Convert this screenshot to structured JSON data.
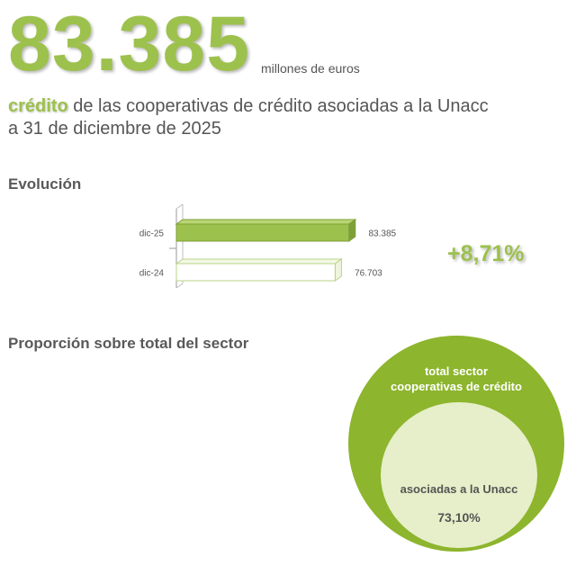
{
  "headline": {
    "big_number": "83.385",
    "unit": "millones de euros",
    "highlight": "crédito",
    "rest_line1": " de las cooperativas de crédito asociadas a la Unacc",
    "line2": "a 31 de diciembre de 2025"
  },
  "evolution": {
    "title": "Evolución",
    "growth": "+8,71%"
  },
  "proportion": {
    "title": "Proporción sobre total del sector",
    "outer_label_line1": "total sector",
    "outer_label_line2": "cooperativas de crédito",
    "inner_label": "asociadas a la Unacc",
    "inner_value": "73,10%"
  },
  "colors": {
    "accent": "#9dc14d",
    "bar_fill": "#9dc14d",
    "outer_circle": "#8db52d",
    "inner_circle": "#e6efc9",
    "text": "#555555"
  },
  "chart_data": {
    "type": "bar",
    "orientation": "horizontal",
    "categories": [
      "dic-25",
      "dic-24"
    ],
    "values": [
      83385,
      76703
    ],
    "value_labels": [
      "83.385",
      "76.703"
    ],
    "styles": [
      "filled",
      "outline"
    ],
    "xlim": [
      0,
      100000
    ],
    "grid": false
  }
}
